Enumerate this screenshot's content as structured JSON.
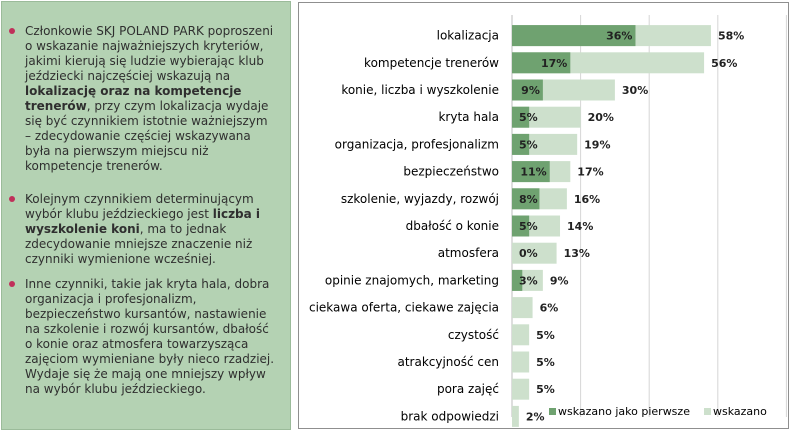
{
  "text_panel": {
    "p1_pre": "Członkowie SKJ POLAND PARK poproszeni o wskazanie najważniejszych kryteriów, jakimi kierują się ludzie wybierając klub jeździecki najczęściej wskazują na ",
    "p1_bold": "lokalizację oraz na kompetencje trenerów",
    "p1_post": ", przy czym lokalizacja wydaje się być czynnikiem istotnie ważniejszym – zdecydowanie częściej wskazywana była na pierwszym miejscu niż kompetencje trenerów.",
    "p2_pre": "Kolejnym czynnikiem determinującym wybór klubu jeździeckiego jest ",
    "p2_bold": "liczba i wyszkolenie koni",
    "p2_post": ", ma to jednak zdecydowanie mniejsze znaczenie niż czynniki wymienione wcześniej.",
    "p3": "Inne czynniki, takie jak kryta hala, dobra organizacja i profesjonalizm, bezpieczeństwo kursantów, nastawienie na szkolenie i rozwój kursantów, dbałość o konie oraz atmosfera towarzysząca zajęciom wymieniane były nieco rzadziej. Wydaje się że mają one mniejszy wpływ na wybór klubu jeździeckiego."
  },
  "colors": {
    "panel_bg": "#b4d2b3",
    "bullet": "#c0305a",
    "first": "#6fa270",
    "mentioned": "#cde0cc"
  },
  "chart_data": {
    "type": "bar",
    "orientation": "horizontal",
    "stacking": "overlay",
    "categories": [
      "lokalizacja",
      "kompetencje trenerów",
      "konie, liczba i wyszkolenie",
      "kryta hala",
      "organizacja, profesjonalizm",
      "bezpieczeństwo",
      "szkolenie, wyjazdy, rozwój",
      "dbałość o konie",
      "atmosfera",
      "opinie znajomych, marketing",
      "ciekawa oferta, ciekawe zajęcia",
      "czystość",
      "atrakcyjność cen",
      "pora zajęć",
      "brak odpowiedzi"
    ],
    "series": [
      {
        "name": "wskazano",
        "color": "#cde0cc",
        "values": [
          58,
          56,
          30,
          20,
          19,
          17,
          16,
          14,
          13,
          9,
          6,
          5,
          5,
          5,
          2
        ],
        "labels": [
          "58%",
          "56%",
          "30%",
          "20%",
          "19%",
          "17%",
          "16%",
          "14%",
          "13%",
          "9%",
          "6%",
          "5%",
          "5%",
          "5%",
          "2%"
        ]
      },
      {
        "name": "wskazano jako pierwsze",
        "color": "#6fa270",
        "values": [
          36,
          17,
          9,
          5,
          5,
          11,
          8,
          5,
          0,
          3,
          null,
          null,
          null,
          null,
          null
        ],
        "labels": [
          "36%",
          "17%",
          "9%",
          "5%",
          "5%",
          "11%",
          "8%",
          "5%",
          "0%",
          "3%",
          null,
          null,
          null,
          null,
          null
        ]
      }
    ],
    "legend_position": "bottom-right",
    "grid": "vertical-lines",
    "xlim": [
      0,
      80
    ]
  }
}
